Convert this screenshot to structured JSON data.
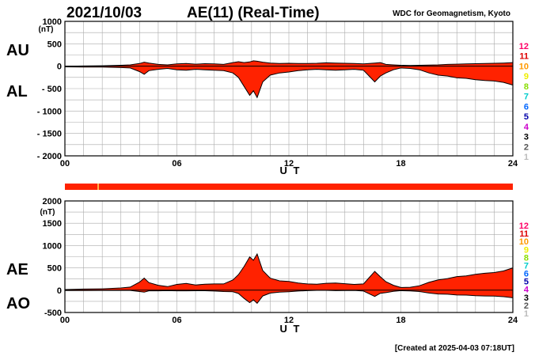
{
  "header": {
    "date": "2021/10/03",
    "title": "AE(11) (Real-Time)",
    "source": "WDC for Geomagnetism, Kyoto"
  },
  "footer": {
    "created": "[Created at 2025-04-03 07:18UT]"
  },
  "colors": {
    "fill": "#ff2200",
    "line": "#000000",
    "grid": "#aaaaaa",
    "bar": "#ff2200",
    "bar_gap": "#ffe066"
  },
  "stations_legend": [
    {
      "label": "12",
      "color": "#ff0066"
    },
    {
      "label": "11",
      "color": "#dd0000"
    },
    {
      "label": "10",
      "color": "#ff9900"
    },
    {
      "label": "9",
      "color": "#eeee00"
    },
    {
      "label": "8",
      "color": "#88dd00"
    },
    {
      "label": "7",
      "color": "#00cccc"
    },
    {
      "label": "6",
      "color": "#0066ff"
    },
    {
      "label": "5",
      "color": "#0000aa"
    },
    {
      "label": "4",
      "color": "#cc00cc"
    },
    {
      "label": "3",
      "color": "#000000"
    },
    {
      "label": "2",
      "color": "#555555"
    },
    {
      "label": "1",
      "color": "#bbbbbb"
    }
  ],
  "coverage_bar": {
    "gap_hours": [
      1.75
    ]
  },
  "chart_data": [
    {
      "type": "area",
      "panel": "AU/AL",
      "upper_label": "AU",
      "lower_label": "AL",
      "unit_label": "(nT)",
      "xlabel": "U T",
      "xlim": [
        0,
        24
      ],
      "xticks": [
        0,
        6,
        12,
        18,
        24
      ],
      "xtick_labels": [
        "00",
        "06",
        "12",
        "18",
        "24"
      ],
      "ylim": [
        -2000,
        1000
      ],
      "yticks": [
        1000,
        500,
        0,
        -500,
        -1000,
        -1500,
        -2000
      ],
      "ytick_labels": [
        "1000",
        "500",
        "0",
        "- 500",
        "- 1000",
        "- 1500",
        "- 2000"
      ],
      "grid": true,
      "x": [
        0,
        1,
        2,
        3,
        3.5,
        4,
        4.25,
        4.5,
        5,
        5.5,
        6,
        6.5,
        7,
        7.5,
        8,
        8.5,
        9,
        9.3,
        9.6,
        9.9,
        10.1,
        10.3,
        10.6,
        11,
        11.5,
        12,
        12.5,
        13,
        13.5,
        14,
        14.5,
        15,
        15.5,
        16,
        16.3,
        16.6,
        16.9,
        17.2,
        17.6,
        18,
        18.5,
        19,
        19.5,
        20,
        20.5,
        21,
        21.5,
        22,
        22.5,
        23,
        23.5,
        24
      ],
      "series": [
        {
          "name": "AU",
          "values": [
            0,
            5,
            10,
            20,
            30,
            60,
            90,
            70,
            40,
            30,
            50,
            60,
            45,
            55,
            50,
            40,
            80,
            100,
            80,
            95,
            120,
            110,
            90,
            70,
            60,
            65,
            60,
            60,
            65,
            75,
            70,
            65,
            60,
            50,
            60,
            70,
            80,
            40,
            30,
            20,
            15,
            20,
            25,
            30,
            40,
            45,
            50,
            55,
            60,
            65,
            70,
            80
          ]
        },
        {
          "name": "AL",
          "values": [
            -15,
            -20,
            -20,
            -30,
            -40,
            -120,
            -180,
            -100,
            -70,
            -50,
            -80,
            -90,
            -70,
            -80,
            -90,
            -100,
            -150,
            -250,
            -450,
            -650,
            -550,
            -700,
            -350,
            -200,
            -150,
            -130,
            -100,
            -80,
            -70,
            -80,
            -90,
            -80,
            -70,
            -90,
            -220,
            -350,
            -220,
            -150,
            -80,
            -40,
            -50,
            -80,
            -150,
            -200,
            -220,
            -260,
            -270,
            -300,
            -320,
            -330,
            -360,
            -420
          ]
        }
      ]
    },
    {
      "type": "area",
      "panel": "AE/AO",
      "upper_label": "AE",
      "lower_label": "AO",
      "unit_label": "(nT)",
      "xlabel": "U T",
      "xlim": [
        0,
        24
      ],
      "xticks": [
        0,
        6,
        12,
        18,
        24
      ],
      "xtick_labels": [
        "00",
        "06",
        "12",
        "18",
        "24"
      ],
      "ylim": [
        -500,
        2000
      ],
      "yticks": [
        2000,
        1500,
        1000,
        500,
        0,
        -500
      ],
      "ytick_labels": [
        "2000",
        "1500",
        "1000",
        "500",
        "0",
        "-500"
      ],
      "grid": true,
      "x": [
        0,
        1,
        2,
        3,
        3.5,
        4,
        4.25,
        4.5,
        5,
        5.5,
        6,
        6.5,
        7,
        7.5,
        8,
        8.5,
        9,
        9.3,
        9.6,
        9.9,
        10.1,
        10.3,
        10.6,
        11,
        11.5,
        12,
        12.5,
        13,
        13.5,
        14,
        14.5,
        15,
        15.5,
        16,
        16.3,
        16.6,
        16.9,
        17.2,
        17.6,
        18,
        18.5,
        19,
        19.5,
        20,
        20.5,
        21,
        21.5,
        22,
        22.5,
        23,
        23.5,
        24
      ],
      "series": [
        {
          "name": "AE",
          "values": [
            15,
            25,
            30,
            50,
            70,
            180,
            270,
            170,
            110,
            80,
            130,
            150,
            115,
            135,
            140,
            140,
            230,
            350,
            530,
            745,
            670,
            810,
            440,
            270,
            210,
            195,
            160,
            140,
            135,
            155,
            160,
            145,
            130,
            140,
            280,
            420,
            300,
            190,
            110,
            60,
            65,
            100,
            175,
            230,
            260,
            305,
            320,
            355,
            380,
            395,
            430,
            500
          ]
        },
        {
          "name": "AO",
          "values": [
            -8,
            -8,
            -5,
            -5,
            -5,
            -30,
            -45,
            -15,
            -15,
            -10,
            -15,
            -15,
            -12,
            -12,
            -20,
            -30,
            -35,
            -75,
            -185,
            -278,
            -215,
            -295,
            -130,
            -65,
            -45,
            -33,
            -20,
            -10,
            -3,
            -3,
            -10,
            -8,
            -5,
            -20,
            -80,
            -140,
            -70,
            -55,
            -25,
            -10,
            -18,
            -30,
            -63,
            -85,
            -90,
            -108,
            -110,
            -123,
            -130,
            -133,
            -145,
            -170
          ]
        }
      ]
    }
  ]
}
